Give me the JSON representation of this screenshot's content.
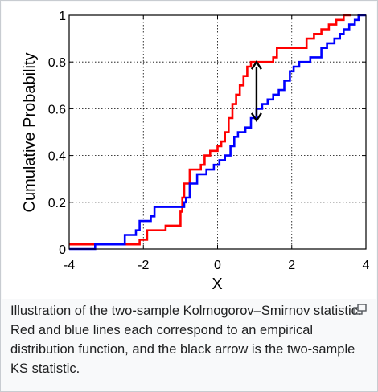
{
  "caption": "Illustration of the two-sample Kolmogorov–Smirnov statistic. Red and blue lines each correspond to an empirical distribution function, and the black arrow is the two-sample KS statistic.",
  "enlarge_icon": "enlarge-icon",
  "chart_data": {
    "type": "line",
    "step": true,
    "xlabel": "X",
    "ylabel": "Cumulative Probability",
    "xlim": [
      -4,
      4
    ],
    "ylim": [
      0,
      1
    ],
    "xticks": [
      "-4",
      "-2",
      "0",
      "2",
      "4"
    ],
    "xtick_values": [
      -4,
      -2,
      0,
      2,
      4
    ],
    "yticks": [
      "0",
      "0.2",
      "0.4",
      "0.6",
      "0.8",
      "1"
    ],
    "ytick_values": [
      0,
      0.2,
      0.4,
      0.6,
      0.8,
      1.0
    ],
    "grid": true,
    "series": [
      {
        "color": "#ff0000",
        "points": [
          [
            -4.0,
            0.02
          ],
          [
            -2.1,
            0.02
          ],
          [
            -2.1,
            0.04
          ],
          [
            -1.9,
            0.04
          ],
          [
            -1.9,
            0.08
          ],
          [
            -1.4,
            0.08
          ],
          [
            -1.4,
            0.1
          ],
          [
            -1.0,
            0.1
          ],
          [
            -1.0,
            0.16
          ],
          [
            -0.95,
            0.16
          ],
          [
            -0.95,
            0.22
          ],
          [
            -0.9,
            0.22
          ],
          [
            -0.9,
            0.28
          ],
          [
            -0.75,
            0.28
          ],
          [
            -0.75,
            0.34
          ],
          [
            -0.45,
            0.34
          ],
          [
            -0.45,
            0.36
          ],
          [
            -0.35,
            0.36
          ],
          [
            -0.35,
            0.4
          ],
          [
            -0.2,
            0.4
          ],
          [
            -0.2,
            0.42
          ],
          [
            0.0,
            0.42
          ],
          [
            0.0,
            0.44
          ],
          [
            0.1,
            0.44
          ],
          [
            0.1,
            0.46
          ],
          [
            0.2,
            0.46
          ],
          [
            0.2,
            0.5
          ],
          [
            0.3,
            0.5
          ],
          [
            0.3,
            0.56
          ],
          [
            0.4,
            0.56
          ],
          [
            0.4,
            0.62
          ],
          [
            0.5,
            0.62
          ],
          [
            0.5,
            0.66
          ],
          [
            0.6,
            0.66
          ],
          [
            0.6,
            0.7
          ],
          [
            0.7,
            0.7
          ],
          [
            0.7,
            0.74
          ],
          [
            0.8,
            0.74
          ],
          [
            0.8,
            0.78
          ],
          [
            0.9,
            0.78
          ],
          [
            0.9,
            0.8
          ],
          [
            1.5,
            0.8
          ],
          [
            1.5,
            0.82
          ],
          [
            1.6,
            0.82
          ],
          [
            1.6,
            0.86
          ],
          [
            2.4,
            0.86
          ],
          [
            2.4,
            0.9
          ],
          [
            2.6,
            0.9
          ],
          [
            2.6,
            0.92
          ],
          [
            2.8,
            0.92
          ],
          [
            2.8,
            0.94
          ],
          [
            3.0,
            0.94
          ],
          [
            3.0,
            0.96
          ],
          [
            3.2,
            0.96
          ],
          [
            3.2,
            0.98
          ],
          [
            3.4,
            0.98
          ],
          [
            3.4,
            1.0
          ],
          [
            3.6,
            1.0
          ]
        ]
      },
      {
        "color": "#0000ff",
        "points": [
          [
            -4.0,
            0.0
          ],
          [
            -3.3,
            0.0
          ],
          [
            -3.3,
            0.02
          ],
          [
            -2.5,
            0.02
          ],
          [
            -2.5,
            0.06
          ],
          [
            -2.2,
            0.06
          ],
          [
            -2.2,
            0.08
          ],
          [
            -2.1,
            0.08
          ],
          [
            -2.1,
            0.12
          ],
          [
            -1.8,
            0.12
          ],
          [
            -1.8,
            0.14
          ],
          [
            -1.7,
            0.14
          ],
          [
            -1.7,
            0.18
          ],
          [
            -0.9,
            0.18
          ],
          [
            -0.9,
            0.2
          ],
          [
            -0.85,
            0.2
          ],
          [
            -0.85,
            0.22
          ],
          [
            -0.75,
            0.22
          ],
          [
            -0.75,
            0.28
          ],
          [
            -0.55,
            0.28
          ],
          [
            -0.55,
            0.32
          ],
          [
            -0.3,
            0.32
          ],
          [
            -0.3,
            0.34
          ],
          [
            -0.1,
            0.34
          ],
          [
            -0.1,
            0.36
          ],
          [
            0.05,
            0.36
          ],
          [
            0.05,
            0.38
          ],
          [
            0.2,
            0.38
          ],
          [
            0.2,
            0.4
          ],
          [
            0.35,
            0.4
          ],
          [
            0.35,
            0.44
          ],
          [
            0.45,
            0.44
          ],
          [
            0.45,
            0.48
          ],
          [
            0.55,
            0.48
          ],
          [
            0.55,
            0.5
          ],
          [
            0.75,
            0.5
          ],
          [
            0.75,
            0.52
          ],
          [
            0.9,
            0.52
          ],
          [
            0.9,
            0.56
          ],
          [
            1.05,
            0.56
          ],
          [
            1.05,
            0.6
          ],
          [
            1.2,
            0.6
          ],
          [
            1.2,
            0.62
          ],
          [
            1.35,
            0.62
          ],
          [
            1.35,
            0.64
          ],
          [
            1.5,
            0.64
          ],
          [
            1.5,
            0.66
          ],
          [
            1.65,
            0.66
          ],
          [
            1.65,
            0.68
          ],
          [
            1.8,
            0.68
          ],
          [
            1.8,
            0.72
          ],
          [
            1.95,
            0.72
          ],
          [
            1.95,
            0.76
          ],
          [
            2.05,
            0.76
          ],
          [
            2.05,
            0.78
          ],
          [
            2.2,
            0.78
          ],
          [
            2.2,
            0.8
          ],
          [
            2.5,
            0.8
          ],
          [
            2.5,
            0.82
          ],
          [
            2.8,
            0.82
          ],
          [
            2.8,
            0.86
          ],
          [
            2.95,
            0.86
          ],
          [
            2.95,
            0.88
          ],
          [
            3.15,
            0.88
          ],
          [
            3.15,
            0.9
          ],
          [
            3.3,
            0.9
          ],
          [
            3.3,
            0.92
          ],
          [
            3.4,
            0.92
          ],
          [
            3.4,
            0.94
          ],
          [
            3.55,
            0.94
          ],
          [
            3.55,
            0.96
          ],
          [
            3.7,
            0.96
          ],
          [
            3.7,
            0.98
          ],
          [
            3.8,
            0.98
          ],
          [
            3.8,
            1.0
          ],
          [
            4.0,
            1.0
          ]
        ]
      }
    ],
    "annotations": [
      {
        "type": "double-arrow",
        "color": "#000000",
        "x": 1.05,
        "y_from": 0.55,
        "y_to": 0.8
      }
    ]
  }
}
